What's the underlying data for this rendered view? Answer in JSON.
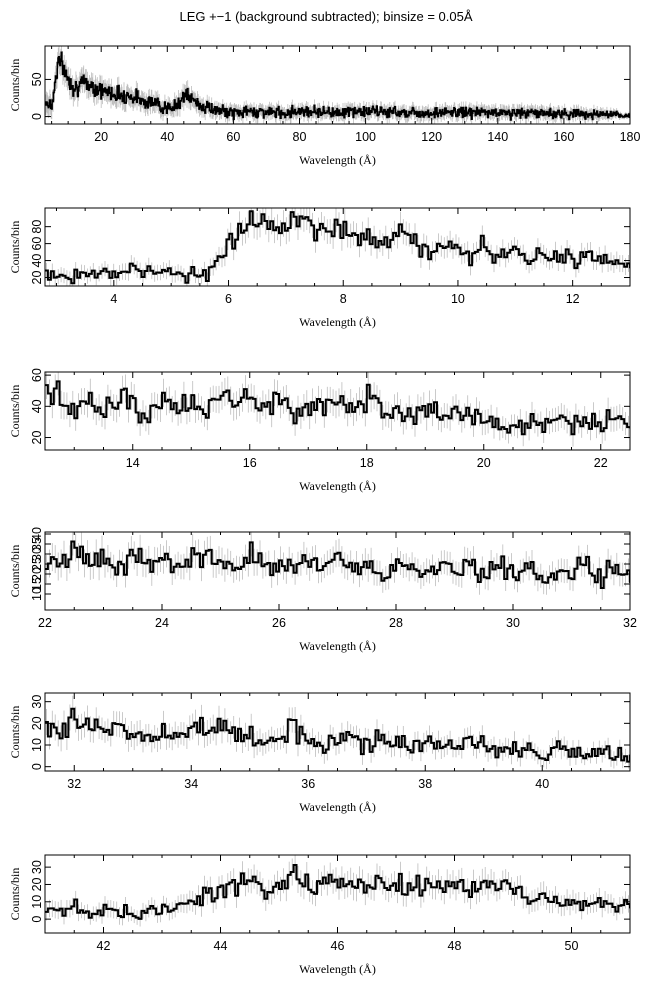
{
  "figure": {
    "title": "LEG +−1 (background subtracted); binsize = 0.05Å",
    "ink_color": "#000000",
    "error_bar_color": "#bdbdbd"
  },
  "chart_data": [
    {
      "type": "line",
      "step": true,
      "xlabel": "Wavelength (Å)",
      "ylabel": "Counts/bin",
      "xlim": [
        3,
        180
      ],
      "ylim": [
        -10,
        95
      ],
      "xticks": [
        20,
        40,
        60,
        80,
        100,
        120,
        140,
        160,
        180
      ],
      "yticks": [
        0,
        50
      ],
      "series": [
        {
          "x": [
            3,
            5,
            7,
            8,
            10,
            12,
            15,
            18,
            20,
            22,
            25,
            28,
            30,
            33,
            36,
            39,
            41,
            43,
            45,
            47,
            50,
            55,
            60,
            65,
            70,
            75,
            80,
            90,
            100,
            110,
            120,
            130,
            140,
            150,
            160,
            165,
            170,
            175,
            178
          ],
          "y": [
            20,
            15,
            78,
            70,
            50,
            40,
            45,
            40,
            35,
            33,
            30,
            28,
            26,
            22,
            18,
            14,
            8,
            18,
            30,
            24,
            15,
            8,
            5,
            7,
            6,
            5,
            8,
            6,
            7,
            6,
            5,
            6,
            5,
            5,
            4,
            4,
            3,
            2,
            1
          ],
          "err": [
            14,
            14,
            14,
            14,
            14,
            14,
            13,
            13,
            12,
            12,
            12,
            12,
            11,
            11,
            11,
            10,
            9,
            11,
            12,
            11,
            10,
            8,
            8,
            8,
            8,
            8,
            8,
            8,
            8,
            8,
            8,
            8,
            8,
            8,
            7,
            7,
            7,
            5,
            3
          ]
        }
      ]
    },
    {
      "type": "line",
      "step": true,
      "xlabel": "Wavelength (Å)",
      "ylabel": "Counts/bin",
      "xlim": [
        2.8,
        13
      ],
      "ylim": [
        10,
        102
      ],
      "xticks": [
        4,
        6,
        8,
        10,
        12
      ],
      "yticks": [
        20,
        40,
        60,
        80
      ],
      "series": [
        {
          "x": [
            2.8,
            3.0,
            3.2,
            3.4,
            3.6,
            3.8,
            4.0,
            4.2,
            4.4,
            4.6,
            4.8,
            5.0,
            5.2,
            5.4,
            5.6,
            5.8,
            6.0,
            6.2,
            6.4,
            6.6,
            6.8,
            7.0,
            7.2,
            7.4,
            7.6,
            7.8,
            8.0,
            8.2,
            8.4,
            8.6,
            8.8,
            9.0,
            9.2,
            9.4,
            9.6,
            9.8,
            10.0,
            10.2,
            10.4,
            10.6,
            10.8,
            11.0,
            11.2,
            11.4,
            11.6,
            11.8,
            12.0,
            12.2,
            12.4,
            12.6,
            12.8,
            13.0
          ],
          "y": [
            22,
            24,
            20,
            26,
            23,
            28,
            25,
            31,
            27,
            33,
            24,
            29,
            22,
            25,
            28,
            36,
            56,
            74,
            86,
            92,
            78,
            84,
            90,
            80,
            72,
            76,
            82,
            66,
            70,
            62,
            66,
            80,
            62,
            55,
            50,
            56,
            52,
            48,
            54,
            44,
            50,
            46,
            42,
            48,
            40,
            44,
            42,
            46,
            40,
            45,
            38,
            36
          ],
          "err": [
            9,
            9,
            9,
            9,
            9,
            9,
            9,
            10,
            10,
            10,
            9,
            10,
            9,
            9,
            10,
            11,
            13,
            15,
            16,
            16,
            15,
            16,
            16,
            15,
            14,
            15,
            15,
            14,
            14,
            13,
            14,
            15,
            13,
            13,
            12,
            13,
            12,
            12,
            12,
            11,
            12,
            11,
            11,
            12,
            11,
            11,
            11,
            11,
            11,
            11,
            10,
            10
          ]
        }
      ]
    },
    {
      "type": "line",
      "step": true,
      "xlabel": "Wavelength (Å)",
      "ylabel": "Counts/bin",
      "xlim": [
        12.5,
        22.5
      ],
      "ylim": [
        12,
        62
      ],
      "xticks": [
        14,
        16,
        18,
        20,
        22
      ],
      "yticks": [
        20,
        40,
        60
      ],
      "series": [
        {
          "x": [
            12.5,
            12.75,
            13.0,
            13.25,
            13.5,
            13.75,
            14.0,
            14.25,
            14.5,
            14.75,
            15.0,
            15.25,
            15.5,
            15.75,
            16.0,
            16.25,
            16.5,
            16.75,
            17.0,
            17.25,
            17.5,
            17.75,
            18.0,
            18.25,
            18.5,
            18.75,
            19.0,
            19.25,
            19.5,
            19.75,
            20.0,
            20.25,
            20.5,
            20.75,
            21.0,
            21.25,
            21.5,
            21.75,
            22.0,
            22.25,
            22.5
          ],
          "y": [
            50,
            45,
            38,
            42,
            36,
            44,
            40,
            34,
            46,
            38,
            42,
            36,
            50,
            40,
            44,
            38,
            46,
            36,
            40,
            38,
            44,
            40,
            46,
            38,
            42,
            36,
            40,
            34,
            38,
            32,
            30,
            28,
            26,
            30,
            28,
            32,
            30,
            28,
            30,
            32,
            26
          ],
          "err": [
            9,
            9,
            8,
            9,
            8,
            9,
            9,
            8,
            9,
            8,
            9,
            8,
            9,
            9,
            9,
            8,
            9,
            8,
            9,
            8,
            9,
            9,
            9,
            8,
            9,
            8,
            9,
            8,
            8,
            8,
            8,
            7,
            7,
            8,
            7,
            8,
            8,
            7,
            8,
            8,
            7
          ]
        }
      ]
    },
    {
      "type": "line",
      "step": true,
      "xlabel": "Wavelength (Å)",
      "ylabel": "Counts/bin",
      "xlim": [
        22,
        32
      ],
      "ylim": [
        2,
        41
      ],
      "xticks": [
        22,
        24,
        26,
        28,
        30,
        32
      ],
      "yticks": [
        10,
        15,
        20,
        25,
        30,
        35,
        40
      ],
      "series": [
        {
          "x": [
            22.0,
            22.25,
            22.5,
            22.75,
            23.0,
            23.25,
            23.5,
            23.75,
            24.0,
            24.25,
            24.5,
            24.75,
            25.0,
            25.25,
            25.5,
            25.75,
            26.0,
            26.25,
            26.5,
            26.75,
            27.0,
            27.25,
            27.5,
            27.75,
            28.0,
            28.25,
            28.5,
            28.75,
            29.0,
            29.25,
            29.5,
            29.75,
            30.0,
            30.25,
            30.5,
            30.75,
            31.0,
            31.25,
            31.5,
            31.75,
            32.0
          ],
          "y": [
            30,
            26,
            34,
            24,
            28,
            22,
            30,
            26,
            28,
            24,
            30,
            26,
            28,
            22,
            32,
            24,
            26,
            22,
            28,
            24,
            30,
            22,
            26,
            20,
            24,
            22,
            20,
            24,
            22,
            26,
            20,
            24,
            22,
            20,
            18,
            22,
            20,
            24,
            18,
            22,
            20
          ],
          "err": [
            7,
            7,
            7,
            7,
            7,
            6,
            7,
            7,
            7,
            6,
            7,
            7,
            7,
            6,
            7,
            6,
            7,
            6,
            7,
            6,
            7,
            6,
            7,
            6,
            6,
            6,
            6,
            6,
            6,
            7,
            6,
            6,
            6,
            6,
            6,
            6,
            6,
            6,
            6,
            6,
            6
          ]
        }
      ]
    },
    {
      "type": "line",
      "step": true,
      "xlabel": "Wavelength (Å)",
      "ylabel": "Counts/bin",
      "xlim": [
        31.5,
        41.5
      ],
      "ylim": [
        -2,
        34
      ],
      "xticks": [
        32,
        34,
        36,
        38,
        40
      ],
      "yticks": [
        0,
        10,
        20,
        30
      ],
      "series": [
        {
          "x": [
            31.5,
            31.75,
            32.0,
            32.25,
            32.5,
            32.75,
            33.0,
            33.25,
            33.5,
            33.75,
            34.0,
            34.25,
            34.5,
            34.75,
            35.0,
            35.25,
            35.5,
            35.75,
            36.0,
            36.25,
            36.5,
            36.75,
            37.0,
            37.25,
            37.5,
            37.75,
            38.0,
            38.25,
            38.5,
            38.75,
            39.0,
            39.25,
            39.5,
            39.75,
            40.0,
            40.25,
            40.5,
            40.75,
            41.0,
            41.25,
            41.5
          ],
          "y": [
            20,
            16,
            22,
            18,
            14,
            20,
            16,
            12,
            18,
            14,
            20,
            16,
            18,
            14,
            16,
            12,
            14,
            18,
            12,
            10,
            14,
            12,
            10,
            14,
            12,
            8,
            12,
            10,
            8,
            12,
            10,
            6,
            10,
            8,
            6,
            10,
            8,
            4,
            8,
            6,
            4
          ],
          "err": [
            6,
            6,
            6,
            6,
            5,
            6,
            6,
            5,
            6,
            5,
            6,
            6,
            6,
            5,
            6,
            5,
            5,
            6,
            5,
            5,
            5,
            5,
            5,
            5,
            5,
            4,
            5,
            5,
            4,
            5,
            5,
            4,
            5,
            4,
            4,
            5,
            4,
            3,
            4,
            4,
            3
          ]
        }
      ]
    },
    {
      "type": "line",
      "step": true,
      "xlabel": "Wavelength (Å)",
      "ylabel": "Counts/bin",
      "xlim": [
        41,
        51
      ],
      "ylim": [
        -8,
        37
      ],
      "xticks": [
        42,
        44,
        46,
        48,
        50
      ],
      "yticks": [
        0,
        10,
        20,
        30
      ],
      "series": [
        {
          "x": [
            41.0,
            41.25,
            41.5,
            41.75,
            42.0,
            42.25,
            42.5,
            42.75,
            43.0,
            43.25,
            43.5,
            43.75,
            44.0,
            44.25,
            44.5,
            44.75,
            45.0,
            45.25,
            45.5,
            45.75,
            46.0,
            46.25,
            46.5,
            46.75,
            47.0,
            47.25,
            47.5,
            47.75,
            48.0,
            48.25,
            48.5,
            48.75,
            49.0,
            49.25,
            49.5,
            49.75,
            50.0,
            50.25,
            50.5,
            50.75,
            51.0
          ],
          "y": [
            6,
            4,
            8,
            2,
            6,
            4,
            2,
            6,
            4,
            8,
            12,
            16,
            14,
            18,
            22,
            16,
            20,
            24,
            18,
            22,
            20,
            24,
            18,
            22,
            20,
            16,
            22,
            18,
            20,
            16,
            24,
            14,
            18,
            12,
            16,
            10,
            12,
            8,
            10,
            6,
            8
          ],
          "err": [
            5,
            5,
            5,
            4,
            5,
            5,
            4,
            5,
            5,
            5,
            6,
            7,
            6,
            7,
            7,
            7,
            7,
            8,
            7,
            7,
            7,
            8,
            7,
            7,
            7,
            7,
            7,
            7,
            7,
            7,
            8,
            6,
            7,
            6,
            7,
            6,
            6,
            5,
            6,
            5,
            5
          ]
        }
      ]
    }
  ]
}
